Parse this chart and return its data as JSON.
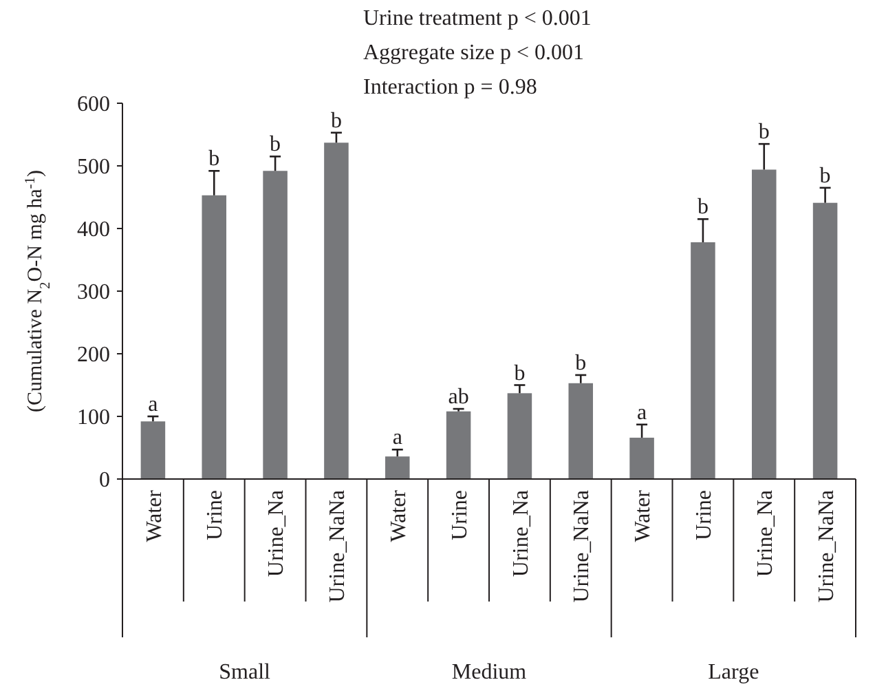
{
  "chart_data": {
    "type": "bar",
    "ylabel": "(Cumulative N$_{2}$O-N mg ha$^{-1}$)",
    "categories": [
      "Water",
      "Urine",
      "Urine_Na",
      "Urine_NaNa",
      "Water",
      "Urine",
      "Urine_Na",
      "Urine_NaNa",
      "Water",
      "Urine",
      "Urine_Na",
      "Urine_NaNa"
    ],
    "values": [
      92,
      453,
      492,
      537,
      36,
      108,
      137,
      153,
      66,
      378,
      494,
      441
    ],
    "errors": [
      [
        92,
        100
      ],
      [
        453,
        492
      ],
      [
        492,
        515
      ],
      [
        537,
        553
      ],
      [
        36,
        47
      ],
      [
        108,
        112
      ],
      [
        137,
        150
      ],
      [
        153,
        166
      ],
      [
        66,
        87
      ],
      [
        378,
        415
      ],
      [
        494,
        535
      ],
      [
        441,
        465
      ]
    ],
    "value_labels": [
      "a",
      "b",
      "b",
      "b",
      "a",
      "ab",
      "b",
      "b",
      "a",
      "b",
      "b",
      "b"
    ],
    "color": "#77787b",
    "ylim": [
      0,
      600
    ],
    "yticks": [
      0,
      100,
      200,
      300,
      400,
      500,
      600
    ],
    "annotations": [
      "Urine treatment p < 0.001",
      "Aggregate size p < 0.001",
      "Interaction p = 0.98",
      "Small",
      "Medium",
      "Large"
    ]
  }
}
